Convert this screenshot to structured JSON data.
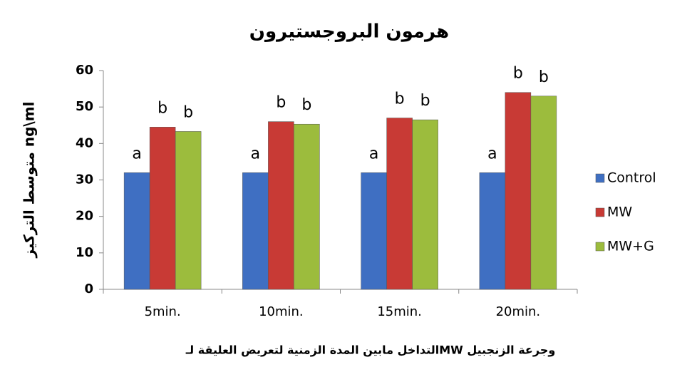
{
  "chart_data": {
    "type": "bar",
    "title": "هرمون البروجستيرون",
    "y_label": "متوسط التركيز ng\\ml",
    "x_label": "التداخل مابين المدة الزمنية لتعريض العليقة لـMW وجرعة الزنجبيل",
    "categories": [
      "5min.",
      "10min.",
      "15min.",
      "20min."
    ],
    "series": [
      {
        "name": "Control",
        "color": "#3f6fc2",
        "values": [
          32,
          32,
          32,
          32
        ],
        "labels": [
          "a",
          "a",
          "a",
          "a"
        ]
      },
      {
        "name": "MW",
        "color": "#c83a35",
        "values": [
          44.5,
          46,
          47,
          54
        ],
        "labels": [
          "b",
          "b",
          "b",
          "b"
        ]
      },
      {
        "name": "MW+G",
        "color": "#9cbc3d",
        "values": [
          43.3,
          45.3,
          46.5,
          53
        ],
        "labels": [
          "b",
          "b",
          "b",
          "b"
        ]
      }
    ],
    "ylim": [
      0,
      60
    ],
    "yticks": [
      0,
      10,
      20,
      30,
      40,
      50,
      60
    ],
    "legend": "right"
  }
}
